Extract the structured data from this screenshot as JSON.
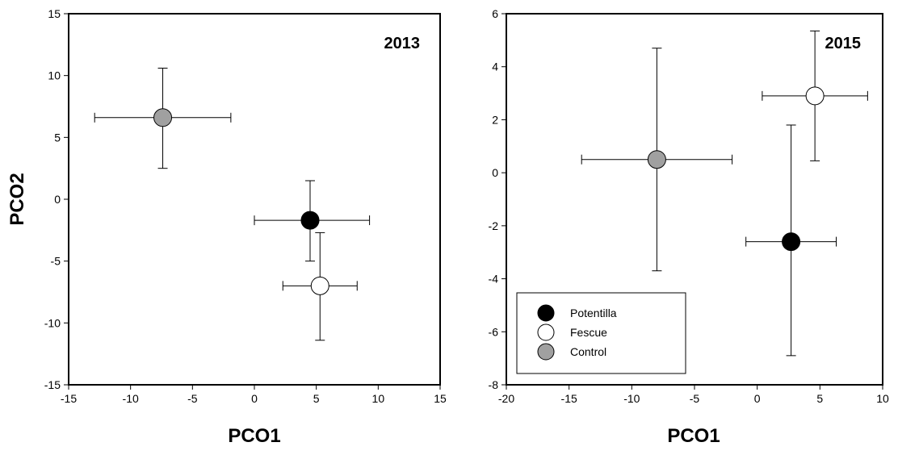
{
  "chart_data": [
    {
      "type": "scatter",
      "title": "2013",
      "xlabel": "PCO1",
      "ylabel": "PCO2",
      "xlim": [
        -15,
        15
      ],
      "ylim": [
        -15,
        15
      ],
      "xticks": [
        -15,
        -10,
        -5,
        0,
        5,
        10,
        15
      ],
      "yticks": [
        -15,
        -10,
        -5,
        0,
        5,
        10,
        15
      ],
      "xtick_labels": [
        "-15",
        "-10",
        "-5",
        "0",
        "5",
        "10",
        "15"
      ],
      "ytick_labels": [
        "-15",
        "-10",
        "-5",
        "0",
        "5",
        "10",
        "15"
      ],
      "grid": false,
      "series": [
        {
          "name": "Potentilla",
          "color": "#000000",
          "points": [
            {
              "x": 4.5,
              "y": -1.7,
              "x_err_low": 0.0,
              "x_err_high": 9.3,
              "y_err_low": -5.0,
              "y_err_high": 1.5
            }
          ]
        },
        {
          "name": "Fescue",
          "color": "#ffffff",
          "points": [
            {
              "x": 5.3,
              "y": -7.0,
              "x_err_low": 2.3,
              "x_err_high": 8.3,
              "y_err_low": -11.4,
              "y_err_high": -2.7
            }
          ]
        },
        {
          "name": "Control",
          "color": "#a0a0a0",
          "points": [
            {
              "x": -7.4,
              "y": 6.6,
              "x_err_low": -12.9,
              "x_err_high": -1.9,
              "y_err_low": 2.5,
              "y_err_high": 10.6
            }
          ]
        }
      ]
    },
    {
      "type": "scatter",
      "title": "2015",
      "xlabel": "PCO1",
      "ylabel": "",
      "xlim": [
        -20,
        10
      ],
      "ylim": [
        -8,
        6
      ],
      "xticks": [
        -20,
        -15,
        -10,
        -5,
        0,
        5,
        10
      ],
      "yticks": [
        -8,
        -6,
        -4,
        -2,
        0,
        2,
        4,
        6
      ],
      "xtick_labels": [
        "-20",
        "-15",
        "-10",
        "-5",
        "0",
        "5",
        "10"
      ],
      "ytick_labels": [
        "-8",
        "-6",
        "-4",
        "-2",
        "0",
        "2",
        "4",
        "6"
      ],
      "grid": false,
      "legend": {
        "position": "bottom-left",
        "entries": [
          {
            "label": "Potentilla",
            "color": "#000000"
          },
          {
            "label": "Fescue",
            "color": "#ffffff"
          },
          {
            "label": "Control",
            "color": "#a0a0a0"
          }
        ]
      },
      "series": [
        {
          "name": "Potentilla",
          "color": "#000000",
          "points": [
            {
              "x": 2.7,
              "y": -2.6,
              "x_err_low": -0.9,
              "x_err_high": 6.3,
              "y_err_low": -6.9,
              "y_err_high": 1.8
            }
          ]
        },
        {
          "name": "Fescue",
          "color": "#ffffff",
          "points": [
            {
              "x": 4.6,
              "y": 2.9,
              "x_err_low": 0.4,
              "x_err_high": 8.8,
              "y_err_low": 0.45,
              "y_err_high": 5.35
            }
          ]
        },
        {
          "name": "Control",
          "color": "#a0a0a0",
          "points": [
            {
              "x": -8.0,
              "y": 0.5,
              "x_err_low": -14.0,
              "x_err_high": -2.0,
              "y_err_low": -3.7,
              "y_err_high": 4.7
            }
          ]
        }
      ]
    }
  ]
}
